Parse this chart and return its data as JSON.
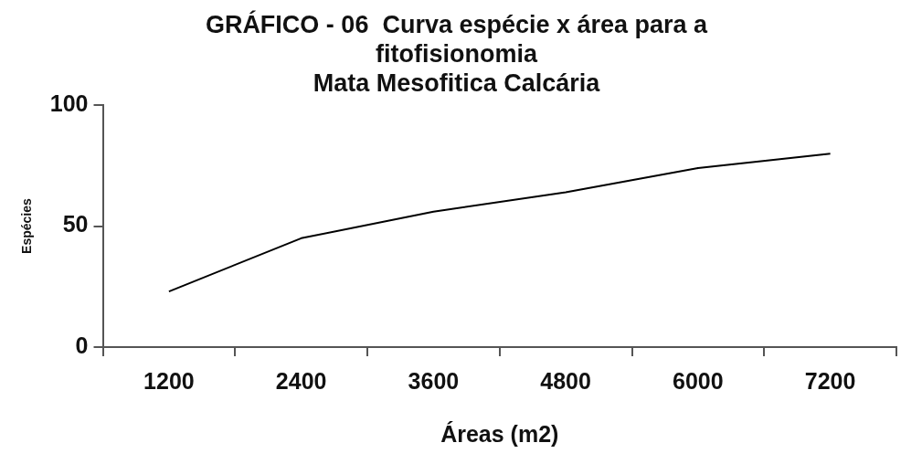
{
  "chart_data": {
    "type": "line",
    "title": [
      "GRÁFICO - 06  Curva espécie x área para a",
      "fitofisionomia",
      "Mata Mesofitica Calcária"
    ],
    "xlabel": "Áreas (m2)",
    "ylabel": "Espécies",
    "categories": [
      "1200",
      "2400",
      "3600",
      "4800",
      "6000",
      "7200"
    ],
    "series": [
      {
        "color": "#000000",
        "values": [
          23,
          45,
          56,
          64,
          74,
          80
        ]
      }
    ],
    "ylim": [
      0,
      100
    ],
    "yticks": [
      0,
      50,
      100
    ],
    "grid": false,
    "legend": false,
    "marker": "none",
    "line_style": "solid"
  }
}
